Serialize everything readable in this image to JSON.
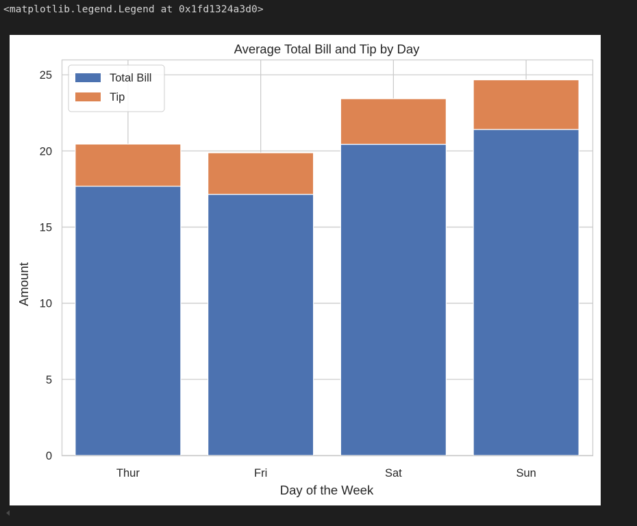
{
  "output": {
    "repr_text": "<matplotlib.legend.Legend at 0x1fd1324a3d0>"
  },
  "chart_data": {
    "type": "bar",
    "stacked": true,
    "title": "Average Total Bill and Tip by Day",
    "xlabel": "Day of the Week",
    "ylabel": "Amount",
    "categories": [
      "Thur",
      "Fri",
      "Sat",
      "Sun"
    ],
    "series": [
      {
        "name": "Total Bill",
        "values": [
          17.68,
          17.15,
          20.44,
          21.41
        ],
        "color": "#4c72b0"
      },
      {
        "name": "Tip",
        "values": [
          2.77,
          2.73,
          2.99,
          3.26
        ],
        "color": "#dd8452"
      }
    ],
    "ylim": [
      0,
      26
    ],
    "yticks": [
      0,
      5,
      10,
      15,
      20,
      25
    ],
    "grid": true,
    "legend_position": "upper-left"
  }
}
